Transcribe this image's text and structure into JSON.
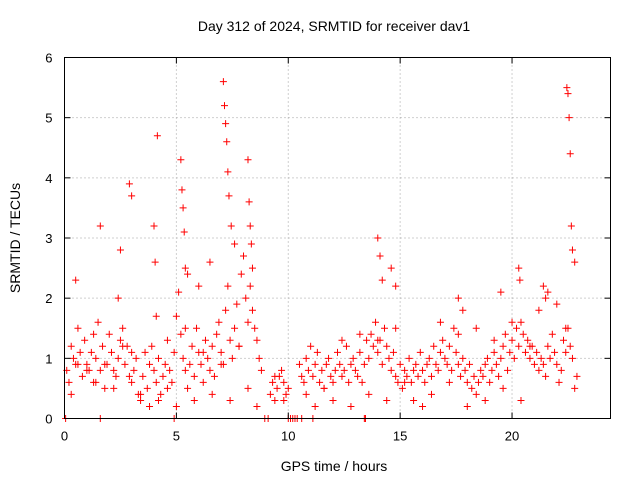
{
  "chart_data": {
    "type": "scatter",
    "title": "Day 312 of 2024, SRMTID for receiver dav1",
    "xlabel": "GPS time / hours",
    "ylabel": "SRMTID / TECUs",
    "xlim": [
      0,
      24.4
    ],
    "ylim": [
      0,
      6
    ],
    "xticks": [
      0,
      5,
      10,
      15,
      20
    ],
    "yticks": [
      0,
      1,
      2,
      3,
      4,
      5,
      6
    ],
    "grid": true,
    "marker": "plus",
    "series": [
      {
        "name": "dav1",
        "color": "#ff0000",
        "x": [
          0.1,
          0.2,
          0.3,
          0.4,
          0.5,
          0.6,
          0.7,
          0.8,
          0.9,
          1.0,
          1.1,
          1.2,
          1.3,
          1.4,
          1.5,
          1.6,
          1.7,
          1.8,
          1.9,
          2.0,
          2.1,
          2.2,
          2.3,
          2.4,
          2.5,
          2.6,
          2.7,
          2.8,
          2.9,
          3.0,
          3.1,
          3.2,
          3.3,
          3.4,
          3.5,
          3.6,
          3.7,
          3.8,
          3.9,
          4.0,
          4.1,
          4.2,
          4.3,
          4.4,
          4.5,
          4.6,
          4.7,
          4.8,
          4.9,
          5.0,
          5.1,
          5.2,
          5.3,
          5.4,
          5.5,
          5.6,
          5.7,
          5.8,
          5.9,
          6.0,
          6.1,
          6.2,
          6.3,
          6.4,
          6.5,
          6.6,
          6.7,
          6.8,
          6.9,
          7.0,
          7.1,
          7.2,
          7.3,
          7.4,
          7.5,
          7.6,
          7.7,
          7.8,
          7.9,
          8.0,
          8.1,
          8.2,
          8.3,
          8.4,
          8.5,
          8.6,
          8.7,
          8.8,
          9.2,
          9.3,
          9.4,
          9.5,
          9.6,
          9.7,
          9.8,
          9.9,
          10.0,
          10.5,
          10.6,
          10.7,
          10.8,
          10.9,
          11.0,
          11.1,
          11.2,
          11.3,
          11.4,
          11.5,
          11.6,
          11.7,
          11.8,
          11.9,
          12.0,
          12.1,
          12.2,
          12.3,
          12.4,
          12.5,
          12.6,
          12.7,
          12.8,
          12.9,
          13.0,
          13.1,
          13.2,
          13.3,
          13.4,
          13.5,
          13.6,
          13.7,
          13.8,
          13.9,
          14.0,
          14.1,
          14.2,
          14.3,
          14.4,
          14.5,
          14.6,
          14.7,
          14.8,
          14.9,
          15.0,
          15.1,
          15.2,
          15.3,
          15.4,
          15.5,
          15.6,
          15.7,
          15.8,
          15.9,
          16.0,
          16.1,
          16.2,
          16.3,
          16.4,
          16.5,
          16.6,
          16.7,
          16.8,
          16.9,
          17.0,
          17.1,
          17.2,
          17.3,
          17.4,
          17.5,
          17.6,
          17.7,
          17.8,
          17.9,
          18.0,
          18.1,
          18.2,
          18.3,
          18.4,
          18.5,
          18.6,
          18.7,
          18.8,
          18.9,
          19.0,
          19.1,
          19.2,
          19.3,
          19.4,
          19.5,
          19.6,
          19.7,
          19.8,
          19.9,
          20.0,
          20.1,
          20.2,
          20.3,
          20.4,
          20.5,
          20.6,
          20.7,
          20.8,
          20.9,
          21.0,
          21.1,
          21.2,
          21.3,
          21.4,
          21.5,
          21.6,
          21.7,
          21.8,
          21.9,
          22.0,
          22.1,
          22.2,
          22.3,
          22.4,
          22.5,
          22.6,
          22.7,
          22.8,
          22.9,
          0.3,
          0.6,
          1.0,
          1.4,
          1.8,
          2.2,
          2.6,
          3.0,
          3.4,
          3.8,
          4.2,
          4.6,
          5.0,
          5.4,
          5.8,
          6.2,
          6.6,
          7.0,
          7.4,
          7.8,
          8.2,
          8.6,
          9.4,
          9.8,
          10.8,
          11.2,
          11.6,
          12.0,
          12.4,
          12.8,
          13.2,
          13.6,
          14.0,
          14.4,
          14.8,
          15.2,
          15.6,
          16.0,
          16.4,
          16.8,
          17.2,
          17.6,
          18.0,
          18.4,
          18.8,
          19.2,
          19.6,
          20.0,
          20.4,
          20.8,
          21.2,
          21.6,
          22.0,
          22.4,
          22.8,
          0.5,
          1.3,
          1.6,
          2.4,
          2.5,
          2.9,
          3.0,
          4.0,
          4.05,
          4.1,
          4.15,
          5.2,
          5.25,
          5.3,
          5.35,
          5.4,
          5.5,
          6.0,
          6.5,
          7.1,
          7.15,
          7.2,
          7.25,
          7.3,
          7.35,
          7.45,
          7.6,
          8.2,
          8.25,
          8.3,
          8.35,
          8.4,
          14.0,
          14.1,
          14.2,
          14.6,
          14.8,
          17.6,
          17.8,
          19.5,
          20.3,
          20.35,
          21.4,
          21.5,
          22.45,
          22.5,
          22.55,
          22.6,
          22.65,
          22.7,
          0.05,
          1.6,
          4.9,
          8.95,
          9.1,
          10.0,
          10.1,
          10.2,
          10.3,
          10.4,
          10.6,
          11.1,
          13.4,
          13.45
        ],
        "y": [
          0.8,
          0.6,
          1.2,
          1.0,
          0.9,
          1.5,
          1.1,
          0.7,
          1.3,
          0.9,
          0.8,
          1.1,
          0.6,
          1.0,
          1.6,
          0.8,
          1.2,
          0.5,
          0.9,
          1.4,
          1.1,
          0.8,
          0.7,
          1.0,
          1.3,
          1.5,
          0.9,
          1.2,
          0.7,
          0.6,
          0.8,
          1.0,
          0.4,
          0.3,
          0.7,
          1.1,
          0.5,
          0.9,
          1.2,
          0.8,
          0.6,
          1.0,
          0.4,
          0.7,
          0.9,
          1.3,
          0.8,
          0.6,
          1.1,
          1.7,
          2.1,
          1.4,
          1.0,
          0.8,
          0.5,
          0.9,
          1.2,
          0.7,
          1.5,
          1.1,
          0.9,
          0.6,
          1.3,
          1.0,
          0.8,
          1.2,
          0.7,
          1.4,
          1.6,
          1.1,
          0.9,
          1.8,
          2.2,
          1.3,
          1.0,
          1.5,
          1.9,
          1.2,
          2.4,
          2.7,
          2.0,
          1.6,
          2.2,
          1.8,
          1.5,
          1.3,
          1.0,
          0.8,
          0.4,
          0.6,
          0.3,
          0.5,
          0.7,
          0.8,
          0.6,
          0.4,
          0.5,
          0.9,
          0.7,
          0.6,
          1.0,
          0.8,
          1.2,
          0.7,
          0.9,
          1.1,
          0.6,
          0.8,
          0.5,
          0.9,
          1.0,
          0.7,
          0.6,
          0.8,
          1.1,
          0.9,
          0.7,
          0.8,
          1.2,
          0.6,
          0.9,
          1.0,
          0.8,
          0.7,
          1.1,
          0.6,
          0.9,
          1.3,
          1.0,
          1.4,
          1.2,
          1.6,
          1.1,
          1.3,
          0.9,
          1.5,
          1.2,
          1.0,
          0.8,
          1.1,
          0.7,
          0.6,
          0.9,
          0.5,
          0.8,
          0.7,
          1.0,
          0.6,
          0.8,
          0.9,
          0.7,
          1.1,
          0.8,
          0.6,
          0.9,
          1.0,
          0.7,
          1.2,
          0.9,
          0.8,
          1.1,
          1.3,
          1.0,
          0.9,
          1.2,
          0.8,
          1.5,
          1.1,
          0.9,
          0.7,
          1.0,
          0.8,
          0.6,
          0.9,
          0.5,
          0.7,
          0.4,
          0.6,
          0.8,
          0.7,
          0.9,
          1.0,
          0.6,
          0.8,
          1.1,
          0.9,
          0.7,
          1.0,
          1.2,
          1.4,
          0.8,
          1.1,
          1.3,
          1.0,
          1.5,
          1.2,
          1.6,
          1.4,
          1.1,
          1.3,
          1.0,
          1.2,
          0.9,
          1.1,
          0.8,
          1.0,
          0.9,
          0.7,
          1.2,
          1.0,
          1.4,
          1.1,
          0.9,
          0.6,
          0.8,
          1.3,
          1.1,
          1.5,
          1.2,
          1.0,
          0.5,
          0.7,
          0.4,
          0.9,
          0.8,
          0.6,
          0.9,
          0.5,
          1.2,
          1.1,
          0.4,
          0.2,
          0.3,
          0.5,
          0.2,
          1.5,
          0.3,
          1.1,
          0.4,
          0.9,
          0.3,
          1.2,
          0.5,
          0.2,
          0.7,
          0.3,
          0.4,
          0.2,
          0.5,
          0.3,
          1.3,
          0.2,
          1.4,
          0.4,
          1.3,
          0.3,
          1.5,
          0.6,
          0.3,
          0.2,
          0.4,
          1.6,
          0.6,
          1.4,
          0.2,
          1.5,
          0.3,
          1.3,
          0.5,
          1.6,
          0.3,
          1.2,
          1.8,
          2.1,
          1.9,
          1.5,
          2.6,
          2.3,
          1.4,
          3.2,
          2.0,
          2.8,
          3.9,
          3.7,
          3.2,
          2.6,
          1.7,
          4.7,
          4.3,
          3.8,
          3.5,
          3.1,
          2.5,
          2.4,
          2.2,
          2.6,
          5.6,
          5.2,
          4.9,
          4.6,
          4.1,
          3.7,
          3.2,
          2.9,
          4.3,
          3.6,
          3.2,
          2.9,
          2.5,
          3.0,
          2.7,
          2.3,
          2.5,
          2.2,
          2.0,
          1.8,
          2.1,
          2.5,
          2.3,
          2.2,
          2.0,
          5.5,
          5.4,
          5.0,
          4.4,
          3.2,
          2.8,
          0.0,
          0.0,
          0.0,
          0.0,
          0.0,
          0.0,
          0.0,
          0.0,
          0.0,
          0.0,
          0.0,
          0.0,
          0.0,
          0.0
        ]
      }
    ]
  }
}
